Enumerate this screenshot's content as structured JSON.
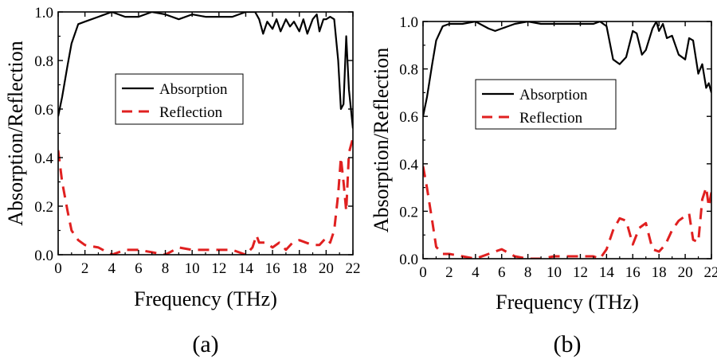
{
  "chart_data": [
    {
      "type": "line",
      "panel_label": "(a)",
      "xlabel": "Frequency (THz)",
      "ylabel": "Absorption/Reflection",
      "xlim": [
        0,
        22
      ],
      "ylim": [
        0,
        1.0
      ],
      "xticks": [
        "0",
        "2",
        "4",
        "6",
        "8",
        "10",
        "12",
        "14",
        "16",
        "18",
        "20",
        "22"
      ],
      "yticks": [
        "0.0",
        "0.2",
        "0.4",
        "0.6",
        "0.8",
        "1.0"
      ],
      "legend_position": "center-left",
      "series": [
        {
          "name": "Absorption",
          "color": "#000000",
          "dash": "solid",
          "x": [
            0,
            0.3,
            0.7,
            1.0,
            1.5,
            2.0,
            3.0,
            4.0,
            5.0,
            6.0,
            7.0,
            8.0,
            9.0,
            10.0,
            11.0,
            12.0,
            13.0,
            14.0,
            14.7,
            15.0,
            15.3,
            15.6,
            16.0,
            16.3,
            16.6,
            17.0,
            17.3,
            17.6,
            18.0,
            18.3,
            18.6,
            19.0,
            19.3,
            19.5,
            19.8,
            20.0,
            20.3,
            20.6,
            20.9,
            21.1,
            21.3,
            21.5,
            21.7,
            22.0
          ],
          "y": [
            0.57,
            0.65,
            0.78,
            0.87,
            0.95,
            0.96,
            0.98,
            1.0,
            0.98,
            0.98,
            1.0,
            0.99,
            0.97,
            0.99,
            0.98,
            0.98,
            0.98,
            1.0,
            1.0,
            0.97,
            0.91,
            0.96,
            0.93,
            0.97,
            0.92,
            0.97,
            0.94,
            0.96,
            0.92,
            0.97,
            0.91,
            0.97,
            0.99,
            0.92,
            0.97,
            0.97,
            0.98,
            0.97,
            0.8,
            0.6,
            0.62,
            0.9,
            0.68,
            0.52
          ]
        },
        {
          "name": "Reflection",
          "color": "#e02020",
          "dash": "dashed",
          "x": [
            0,
            0.3,
            0.7,
            1.0,
            1.5,
            2.0,
            3.0,
            4.0,
            5.0,
            6.0,
            7.0,
            8.0,
            9.0,
            10.0,
            11.0,
            12.0,
            13.0,
            14.0,
            14.5,
            14.8,
            15.0,
            15.5,
            16.0,
            16.5,
            17.0,
            17.5,
            18.0,
            18.5,
            19.0,
            19.5,
            20.0,
            20.3,
            20.6,
            20.9,
            21.1,
            21.3,
            21.5,
            21.7,
            22.0
          ],
          "y": [
            0.43,
            0.3,
            0.18,
            0.1,
            0.06,
            0.04,
            0.03,
            0.0,
            0.02,
            0.02,
            0.01,
            0.0,
            0.03,
            0.02,
            0.02,
            0.02,
            0.02,
            0.0,
            0.03,
            0.08,
            0.05,
            0.05,
            0.03,
            0.05,
            0.02,
            0.05,
            0.06,
            0.05,
            0.04,
            0.04,
            0.07,
            0.05,
            0.1,
            0.25,
            0.4,
            0.3,
            0.18,
            0.42,
            0.48
          ]
        }
      ]
    },
    {
      "type": "line",
      "panel_label": "(b)",
      "xlabel": "Frequency (THz)",
      "ylabel": "Absorption/Reflection",
      "xlim": [
        0,
        22
      ],
      "ylim": [
        0,
        1.0
      ],
      "xticks": [
        "0",
        "2",
        "4",
        "6",
        "8",
        "10",
        "12",
        "14",
        "16",
        "18",
        "20",
        "22"
      ],
      "yticks": [
        "0.0",
        "0.2",
        "0.4",
        "0.6",
        "0.8",
        "1.0"
      ],
      "legend_position": "center-left",
      "series": [
        {
          "name": "Absorption",
          "color": "#000000",
          "dash": "solid",
          "x": [
            0,
            0.3,
            0.7,
            1.0,
            1.5,
            2.0,
            3.0,
            4.0,
            5.0,
            5.5,
            6.0,
            7.0,
            8.0,
            9.0,
            10.0,
            11.0,
            12.0,
            13.0,
            13.5,
            14.0,
            14.5,
            15.0,
            15.5,
            16.0,
            16.3,
            16.7,
            17.0,
            17.5,
            17.8,
            18.0,
            18.3,
            18.6,
            19.0,
            19.5,
            20.0,
            20.3,
            20.6,
            21.0,
            21.3,
            21.6,
            21.8,
            22.0
          ],
          "y": [
            0.6,
            0.68,
            0.82,
            0.92,
            0.98,
            0.99,
            0.99,
            1.0,
            0.97,
            0.96,
            0.97,
            0.99,
            1.0,
            0.99,
            0.99,
            0.99,
            0.99,
            0.99,
            1.0,
            0.98,
            0.84,
            0.82,
            0.85,
            0.96,
            0.95,
            0.86,
            0.88,
            0.97,
            1.0,
            0.96,
            0.99,
            0.93,
            0.94,
            0.86,
            0.84,
            0.93,
            0.92,
            0.78,
            0.82,
            0.72,
            0.74,
            0.7
          ]
        },
        {
          "name": "Reflection",
          "color": "#e02020",
          "dash": "dashed",
          "x": [
            0,
            0.3,
            0.7,
            1.0,
            1.5,
            2.0,
            3.0,
            4.0,
            5.0,
            6.0,
            7.0,
            8.0,
            9.0,
            10.0,
            11.0,
            12.0,
            13.0,
            13.5,
            14.0,
            14.5,
            15.0,
            15.5,
            16.0,
            16.5,
            17.0,
            17.5,
            18.0,
            18.5,
            19.0,
            19.5,
            20.0,
            20.3,
            20.6,
            21.0,
            21.3,
            21.6,
            21.8,
            22.0
          ],
          "y": [
            0.39,
            0.3,
            0.16,
            0.05,
            0.02,
            0.02,
            0.01,
            0.0,
            0.02,
            0.04,
            0.01,
            0.0,
            0.0,
            0.01,
            0.01,
            0.01,
            0.01,
            0.0,
            0.04,
            0.12,
            0.17,
            0.16,
            0.06,
            0.13,
            0.15,
            0.04,
            0.03,
            0.06,
            0.12,
            0.16,
            0.18,
            0.19,
            0.08,
            0.07,
            0.25,
            0.3,
            0.22,
            0.28
          ]
        }
      ]
    }
  ]
}
